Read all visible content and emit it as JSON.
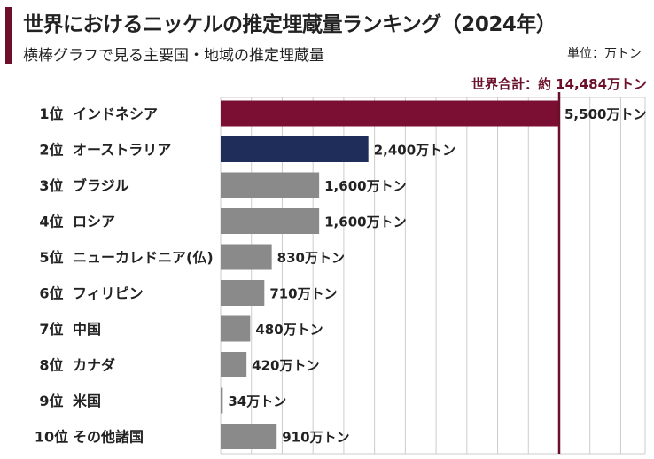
{
  "title": "世界におけるニッケルの推定埋蔵量ランキング（2024年）",
  "subtitle": "横棒グラフで見る主要国・地域の推定埋蔵量",
  "unit_label": "単位：万トン",
  "colors": {
    "accent": "#6b0f2a",
    "highlight_bar": "#7a0f33",
    "secondary_bar": "#1e2d5a",
    "default_bar": "#8a8a8a",
    "grid": "#cccccc",
    "total_line": "#6b0f2a"
  },
  "chart_data": {
    "type": "bar",
    "orientation": "horizontal",
    "title": "世界におけるニッケルの推定埋蔵量ランキング（2024年）",
    "xlabel": "",
    "ylabel": "",
    "xlim": [
      0,
      7000
    ],
    "grid": true,
    "categories": [
      {
        "rank": "1位",
        "name": "インドネシア",
        "value": 5500,
        "label": "5,500万トン",
        "style": "highlight"
      },
      {
        "rank": "2位",
        "name": "オーストラリア",
        "value": 2400,
        "label": "2,400万トン",
        "style": "secondary"
      },
      {
        "rank": "3位",
        "name": "ブラジル",
        "value": 1600,
        "label": "1,600万トン",
        "style": "default"
      },
      {
        "rank": "4位",
        "name": "ロシア",
        "value": 1600,
        "label": "1,600万トン",
        "style": "default"
      },
      {
        "rank": "5位",
        "name": "ニューカレドニア(仏)",
        "value": 830,
        "label": "830万トン",
        "style": "default"
      },
      {
        "rank": "6位",
        "name": "フィリピン",
        "value": 710,
        "label": "710万トン",
        "style": "default"
      },
      {
        "rank": "7位",
        "name": "中国",
        "value": 480,
        "label": "480万トン",
        "style": "default"
      },
      {
        "rank": "8位",
        "name": "カナダ",
        "value": 420,
        "label": "420万トン",
        "style": "default"
      },
      {
        "rank": "9位",
        "name": "米国",
        "value": 34,
        "label": "34万トン",
        "style": "default"
      },
      {
        "rank": "10位",
        "name": "その他諸国",
        "value": 910,
        "label": "910万トン",
        "style": "default"
      }
    ],
    "reference_line": {
      "value": 5500,
      "label": "世界合計：約 14,484万トン"
    }
  }
}
